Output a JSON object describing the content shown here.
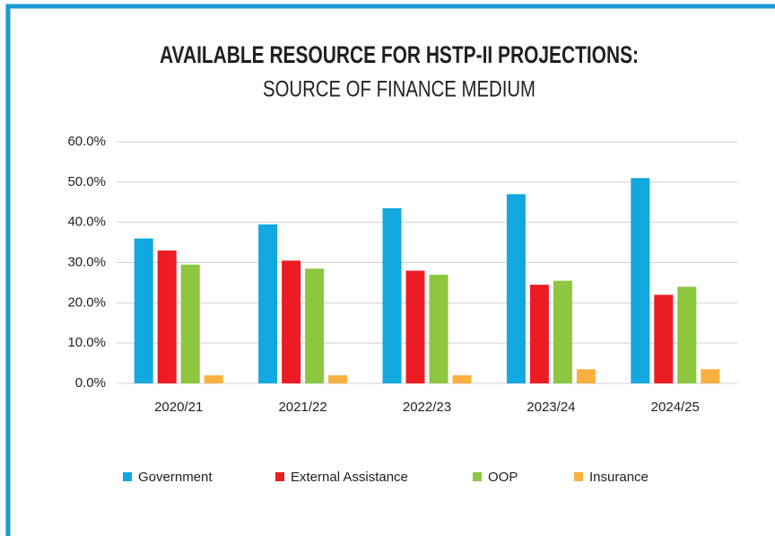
{
  "chart_data": {
    "type": "bar",
    "title": "AVAILABLE RESOURCE FOR HSTP-II PROJECTIONS:",
    "subtitle": "SOURCE OF FINANCE MEDIUM",
    "categories": [
      "2020/21",
      "2021/22",
      "2022/23",
      "2023/24",
      "2024/25"
    ],
    "series": [
      {
        "name": "Government",
        "color": "#12a8e0",
        "values": [
          36,
          39.5,
          43.5,
          47,
          51
        ]
      },
      {
        "name": "External Assistance",
        "color": "#ed1c24",
        "values": [
          33,
          30.5,
          28,
          24.5,
          22
        ]
      },
      {
        "name": "OOP",
        "color": "#8dc63f",
        "values": [
          29.5,
          28.5,
          27,
          25.5,
          24
        ]
      },
      {
        "name": "Insurance",
        "color": "#fbb040",
        "values": [
          2,
          2,
          2,
          3.5,
          3.5
        ]
      }
    ],
    "ylim": [
      0,
      60
    ],
    "yticks": [
      {
        "value": 0,
        "label": "0.0%"
      },
      {
        "value": 10,
        "label": "10.0%"
      },
      {
        "value": 20,
        "label": "20.0%"
      },
      {
        "value": 30,
        "label": "30.0%"
      },
      {
        "value": 40,
        "label": "40.0%"
      },
      {
        "value": 50,
        "label": "50.0%"
      },
      {
        "value": 60,
        "label": "60.0%"
      }
    ],
    "grid": true,
    "legend": "bottom"
  }
}
